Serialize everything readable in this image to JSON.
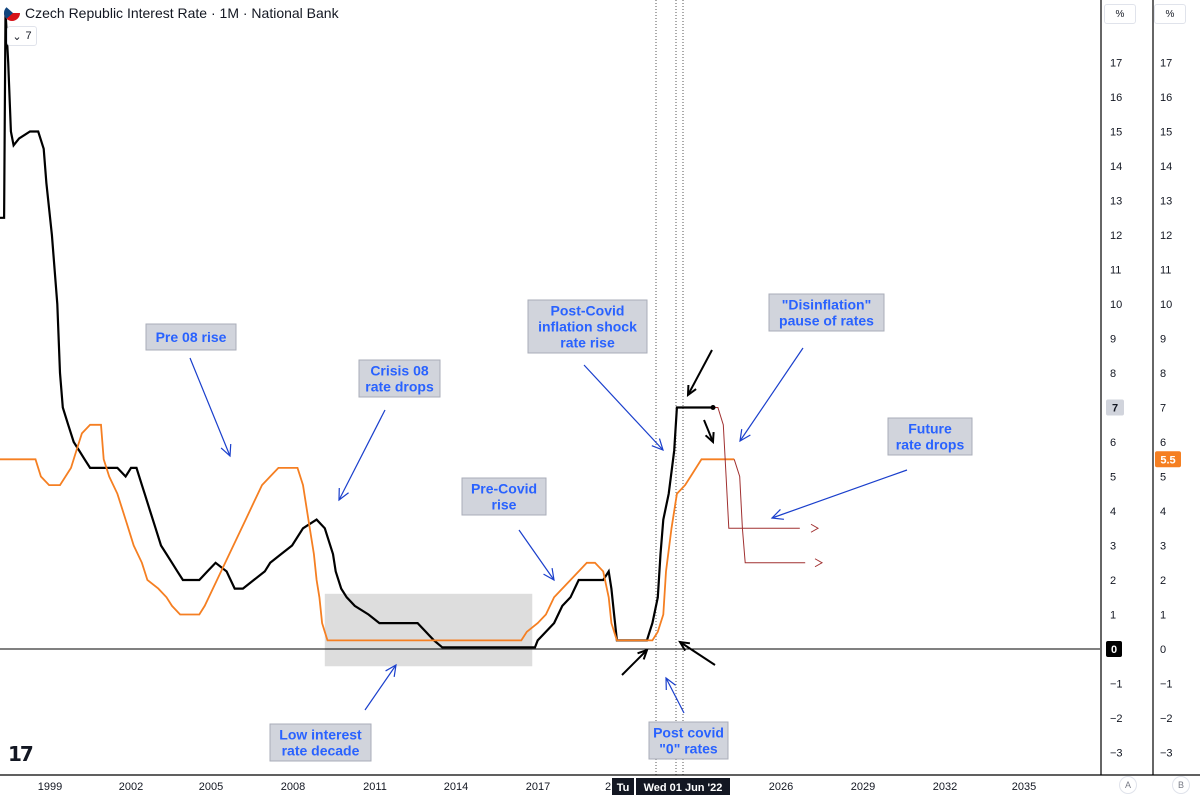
{
  "header": {
    "title": "Czech Republic Interest Rate · 1M · National Bank",
    "collapse_label": "7",
    "scale_a_unit": "%",
    "scale_b_unit": "%",
    "scale_a_label": "A",
    "scale_b_label": "B"
  },
  "colors": {
    "policy_rate": "#000000",
    "inflation_rate": "#f57f22",
    "forecast": "#a03030",
    "annotation_bg": "#d1d4dc",
    "annotation_text": "#2962ff",
    "arrow_blue": "#1a3fcc",
    "badge_orange": "#f57f22"
  },
  "chart_data": {
    "type": "line",
    "x_ticks": [
      "1999",
      "2002",
      "2005",
      "2008",
      "2011",
      "2014",
      "2017",
      "2",
      "2026",
      "2029",
      "2032",
      "2035"
    ],
    "crosshair_labels": [
      "Tu",
      "Wed 01 Jun '22"
    ],
    "y_ticks": [
      "17",
      "16",
      "15",
      "14",
      "13",
      "12",
      "11",
      "10",
      "9",
      "8",
      "7",
      "6",
      "5",
      "4",
      "3",
      "2",
      "1",
      "0",
      "−1",
      "−2",
      "−3"
    ],
    "ylim": [
      -3.4,
      18
    ],
    "xlim": [
      1997.7,
      2038
    ],
    "last_value_badges": [
      "7",
      "5.5",
      "0"
    ],
    "series": [
      {
        "color_key": "policy_rate",
        "points": [
          [
            1997.7,
            12.5
          ],
          [
            1997.85,
            12.5
          ],
          [
            1997.9,
            18.5
          ],
          [
            1998.0,
            17
          ],
          [
            1998.1,
            15
          ],
          [
            1998.2,
            14.6
          ],
          [
            1998.4,
            14.8
          ],
          [
            1998.6,
            14.9
          ],
          [
            1998.8,
            15
          ],
          [
            1999.1,
            15
          ],
          [
            1999.3,
            14.5
          ],
          [
            1999.4,
            13.5
          ],
          [
            1999.6,
            12
          ],
          [
            1999.8,
            10
          ],
          [
            1999.9,
            8
          ],
          [
            2000.0,
            7
          ],
          [
            2000.2,
            6.5
          ],
          [
            2000.4,
            6
          ],
          [
            2000.6,
            5.75
          ],
          [
            2000.8,
            5.5
          ],
          [
            2001.0,
            5.25
          ],
          [
            2001.5,
            5.25
          ],
          [
            2002.0,
            5.25
          ],
          [
            2002.3,
            5.0
          ],
          [
            2002.5,
            5.25
          ],
          [
            2002.7,
            5.25
          ],
          [
            2002.9,
            4.75
          ],
          [
            2003.0,
            4.5
          ],
          [
            2003.2,
            4.0
          ],
          [
            2003.4,
            3.5
          ],
          [
            2003.6,
            3.0
          ],
          [
            2003.8,
            2.75
          ],
          [
            2004.0,
            2.5
          ],
          [
            2004.2,
            2.25
          ],
          [
            2004.4,
            2.0
          ],
          [
            2004.6,
            2.0
          ],
          [
            2005.0,
            2.0
          ],
          [
            2005.3,
            2.25
          ],
          [
            2005.6,
            2.5
          ],
          [
            2006.0,
            2.25
          ],
          [
            2006.3,
            1.75
          ],
          [
            2006.6,
            1.75
          ],
          [
            2007.0,
            2.0
          ],
          [
            2007.4,
            2.25
          ],
          [
            2007.6,
            2.5
          ],
          [
            2008.0,
            2.75
          ],
          [
            2008.4,
            3.0
          ],
          [
            2008.8,
            3.5
          ],
          [
            2009.3,
            3.75
          ],
          [
            2009.6,
            3.5
          ],
          [
            2009.9,
            2.75
          ],
          [
            2010.0,
            2.25
          ],
          [
            2010.2,
            1.75
          ],
          [
            2010.4,
            1.5
          ],
          [
            2010.7,
            1.25
          ],
          [
            2011.2,
            1.0
          ],
          [
            2011.6,
            0.75
          ],
          [
            2012.0,
            0.75
          ],
          [
            2013.0,
            0.75
          ],
          [
            2013.3,
            0.5
          ],
          [
            2013.6,
            0.25
          ],
          [
            2013.9,
            0.05
          ],
          [
            2014.5,
            0.05
          ],
          [
            2015.5,
            0.05
          ],
          [
            2016.5,
            0.05
          ],
          [
            2017.3,
            0.05
          ],
          [
            2017.4,
            0.25
          ],
          [
            2017.7,
            0.5
          ],
          [
            2018.0,
            0.75
          ],
          [
            2018.3,
            1.25
          ],
          [
            2018.6,
            1.5
          ],
          [
            2018.9,
            2.0
          ],
          [
            2019.3,
            2.0
          ],
          [
            2019.8,
            2.0
          ],
          [
            2020.0,
            2.25
          ],
          [
            2020.1,
            1.75
          ],
          [
            2020.2,
            1.0
          ],
          [
            2020.3,
            0.25
          ],
          [
            2020.6,
            0.25
          ],
          [
            2021.0,
            0.25
          ],
          [
            2021.4,
            0.25
          ],
          [
            2021.5,
            0.5
          ],
          [
            2021.6,
            0.75
          ],
          [
            2021.8,
            1.5
          ],
          [
            2021.9,
            2.75
          ],
          [
            2022.0,
            3.75
          ],
          [
            2022.2,
            4.5
          ],
          [
            2022.4,
            5.75
          ],
          [
            2022.5,
            7.0
          ],
          [
            2023.0,
            7.0
          ],
          [
            2023.8,
            7.0
          ]
        ]
      },
      {
        "color_key": "inflation_rate",
        "points": [
          [
            1997.7,
            5.5
          ],
          [
            1998.5,
            5.5
          ],
          [
            1999.0,
            5.5
          ],
          [
            1999.2,
            5.0
          ],
          [
            1999.5,
            4.75
          ],
          [
            1999.9,
            4.75
          ],
          [
            2000.1,
            5.0
          ],
          [
            2000.3,
            5.25
          ],
          [
            2000.5,
            5.75
          ],
          [
            2000.7,
            6.25
          ],
          [
            2001.0,
            6.5
          ],
          [
            2001.4,
            6.5
          ],
          [
            2001.5,
            5.5
          ],
          [
            2001.7,
            5.0
          ],
          [
            2002.0,
            4.5
          ],
          [
            2002.3,
            3.75
          ],
          [
            2002.6,
            3.0
          ],
          [
            2002.9,
            2.5
          ],
          [
            2003.1,
            2.0
          ],
          [
            2003.5,
            1.75
          ],
          [
            2003.8,
            1.5
          ],
          [
            2004.0,
            1.25
          ],
          [
            2004.3,
            1.0
          ],
          [
            2005.0,
            1.0
          ],
          [
            2005.2,
            1.25
          ],
          [
            2005.5,
            1.75
          ],
          [
            2005.8,
            2.25
          ],
          [
            2006.1,
            2.75
          ],
          [
            2006.4,
            3.25
          ],
          [
            2006.7,
            3.75
          ],
          [
            2007.0,
            4.25
          ],
          [
            2007.3,
            4.75
          ],
          [
            2007.6,
            5.0
          ],
          [
            2007.9,
            5.25
          ],
          [
            2008.2,
            5.25
          ],
          [
            2008.6,
            5.25
          ],
          [
            2008.8,
            4.75
          ],
          [
            2009.0,
            3.75
          ],
          [
            2009.2,
            2.75
          ],
          [
            2009.3,
            2.0
          ],
          [
            2009.4,
            1.5
          ],
          [
            2009.5,
            0.75
          ],
          [
            2009.6,
            0.5
          ],
          [
            2009.7,
            0.25
          ],
          [
            2010.0,
            0.25
          ],
          [
            2012.0,
            0.25
          ],
          [
            2014.0,
            0.25
          ],
          [
            2016.0,
            0.25
          ],
          [
            2016.8,
            0.25
          ],
          [
            2017.0,
            0.5
          ],
          [
            2017.4,
            0.75
          ],
          [
            2017.7,
            1.0
          ],
          [
            2018.0,
            1.5
          ],
          [
            2018.3,
            1.75
          ],
          [
            2018.6,
            2.0
          ],
          [
            2018.9,
            2.25
          ],
          [
            2019.2,
            2.5
          ],
          [
            2019.5,
            2.5
          ],
          [
            2019.8,
            2.25
          ],
          [
            2020.0,
            1.5
          ],
          [
            2020.1,
            0.75
          ],
          [
            2020.3,
            0.25
          ],
          [
            2021.0,
            0.25
          ],
          [
            2021.6,
            0.25
          ],
          [
            2021.8,
            0.5
          ],
          [
            2022.0,
            1.0
          ],
          [
            2022.1,
            2.25
          ],
          [
            2022.3,
            3.5
          ],
          [
            2022.5,
            4.5
          ],
          [
            2022.8,
            4.75
          ],
          [
            2023.0,
            5.0
          ],
          [
            2023.4,
            5.5
          ],
          [
            2024.0,
            5.5
          ],
          [
            2024.6,
            5.5
          ]
        ]
      },
      {
        "color_key": "forecast",
        "points": [
          [
            2023.8,
            7.0
          ],
          [
            2024.0,
            7.0
          ],
          [
            2024.2,
            6.5
          ],
          [
            2024.3,
            5.0
          ],
          [
            2024.4,
            3.5
          ],
          [
            2024.6,
            3.5
          ],
          [
            2027.0,
            3.5
          ]
        ]
      },
      {
        "color_key": "forecast",
        "points": [
          [
            2024.6,
            5.5
          ],
          [
            2024.8,
            5.0
          ],
          [
            2024.9,
            3.5
          ],
          [
            2025.0,
            2.5
          ],
          [
            2025.2,
            2.5
          ],
          [
            2027.2,
            2.5
          ]
        ]
      }
    ],
    "annotations": [
      {
        "text": [
          "Pre 08 rise"
        ]
      },
      {
        "text": [
          "Crisis 08",
          "rate drops"
        ]
      },
      {
        "text": [
          "Low interest",
          "rate decade"
        ]
      },
      {
        "text": [
          "Pre-Covid",
          "rise"
        ]
      },
      {
        "text": [
          "Post-Covid",
          "inflation shock",
          "rate rise"
        ]
      },
      {
        "text": [
          "\"Disinflation\"",
          "pause of rates"
        ]
      },
      {
        "text": [
          "Future",
          "rate drops"
        ]
      },
      {
        "text": [
          "Post covid",
          "\"0\" rates"
        ]
      }
    ],
    "highlight_range": {
      "x": [
        2009.6,
        2017.2
      ],
      "y": [
        -0.5,
        1.6
      ]
    },
    "crosshair_dates": [
      2021.4,
      2022.0,
      2022.3
    ],
    "grid": false
  }
}
